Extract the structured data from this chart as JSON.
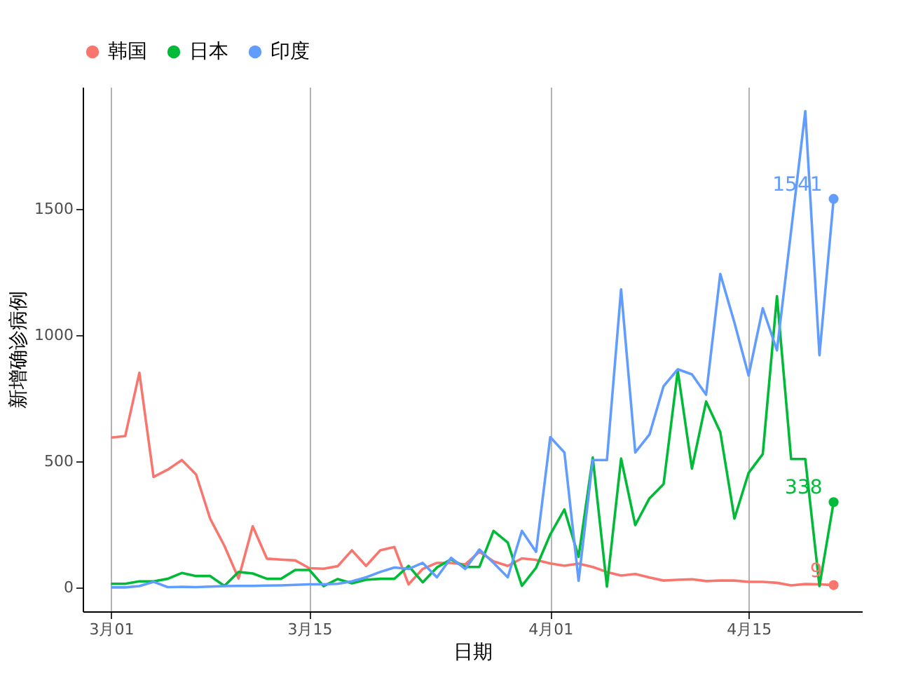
{
  "chart_data": {
    "type": "line",
    "xlabel": "日期",
    "ylabel": "新增确诊病例",
    "x": [
      "--03-01",
      "--03-02",
      "--03-03",
      "--03-04",
      "--03-05",
      "--03-06",
      "--03-07",
      "--03-08",
      "--03-09",
      "--03-10",
      "--03-11",
      "--03-12",
      "--03-13",
      "--03-14",
      "--03-15",
      "--03-16",
      "--03-17",
      "--03-18",
      "--03-19",
      "--03-20",
      "--03-21",
      "--03-22",
      "--03-23",
      "--03-24",
      "--03-25",
      "--03-26",
      "--03-27",
      "--03-28",
      "--03-29",
      "--03-30",
      "--03-31",
      "--04-01",
      "--04-02",
      "--04-03",
      "--04-04",
      "--04-05",
      "--04-06",
      "--04-07",
      "--04-08",
      "--04-09",
      "--04-10",
      "--04-11",
      "--04-12",
      "--04-13",
      "--04-14",
      "--04-15",
      "--04-16",
      "--04-17",
      "--04-18",
      "--04-19",
      "--04-20",
      "--04-21"
    ],
    "series": [
      {
        "name": "韩国",
        "color": "#f8766d",
        "values": [
          594,
          600,
          851,
          438,
          467,
          505,
          448,
          272,
          165,
          35,
          242,
          114,
          110,
          107,
          76,
          74,
          84,
          147,
          85,
          147,
          160,
          12,
          73,
          97,
          97,
          91,
          141,
          103,
          85,
          115,
          109,
          95,
          86,
          94,
          81,
          61,
          47,
          53,
          39,
          27,
          30,
          32,
          25,
          27,
          27,
          22,
          22,
          18,
          8,
          13,
          12,
          9
        ],
        "value_labels": [
          null,
          null,
          null,
          null,
          null,
          null,
          null,
          null,
          null,
          null,
          null,
          null,
          null,
          null,
          null,
          null,
          null,
          null,
          null,
          null,
          null,
          null,
          null,
          null,
          null,
          null,
          null,
          null,
          null,
          null,
          null,
          null,
          null,
          null,
          null,
          null,
          null,
          null,
          null,
          null,
          null,
          null,
          null,
          null,
          null,
          null,
          null,
          null,
          null,
          null,
          null,
          "9"
        ]
      },
      {
        "name": "日本",
        "color": "#00ba38",
        "values": [
          14,
          14,
          24,
          24,
          34,
          57,
          45,
          45,
          6,
          61,
          55,
          34,
          34,
          69,
          69,
          5,
          33,
          16,
          30,
          34,
          34,
          85,
          20,
          79,
          111,
          81,
          81,
          224,
          178,
          6,
          78,
          210,
          309,
          121,
          515,
          3,
          511,
          247,
          353,
          410,
          859,
          471,
          737,
          616,
          273,
          454,
          529,
          1155,
          509,
          509,
          5,
          338
        ],
        "value_labels": [
          null,
          null,
          null,
          null,
          null,
          null,
          null,
          null,
          null,
          null,
          null,
          null,
          null,
          null,
          null,
          null,
          null,
          null,
          null,
          null,
          null,
          null,
          null,
          null,
          null,
          null,
          null,
          null,
          null,
          null,
          null,
          null,
          null,
          null,
          null,
          null,
          null,
          null,
          null,
          null,
          null,
          null,
          null,
          null,
          null,
          null,
          null,
          null,
          null,
          null,
          null,
          "338"
        ]
      },
      {
        "name": "印度",
        "color": "#619cff",
        "values": [
          0,
          0,
          5,
          22,
          1,
          2,
          1,
          3,
          5,
          6,
          6,
          7,
          8,
          10,
          12,
          12,
          14,
          24,
          40,
          61,
          79,
          73,
          97,
          40,
          117,
          73,
          150,
          97,
          40,
          224,
          141,
          596,
          535,
          26,
          505,
          505,
          1182,
          535,
          606,
          798,
          865,
          845,
          764,
          1243,
          1050,
          840,
          1107,
          940,
          1414,
          1889,
          921,
          1541
        ],
        "value_labels": [
          null,
          null,
          null,
          null,
          null,
          null,
          null,
          null,
          null,
          null,
          null,
          null,
          null,
          null,
          null,
          null,
          null,
          null,
          null,
          null,
          null,
          null,
          null,
          null,
          null,
          null,
          null,
          null,
          null,
          null,
          null,
          null,
          null,
          null,
          null,
          null,
          null,
          null,
          null,
          null,
          null,
          null,
          null,
          null,
          null,
          null,
          null,
          null,
          null,
          null,
          null,
          "1541"
        ]
      }
    ],
    "xlim": [
      "--02-27",
      "--04-23"
    ],
    "xticks": [
      {
        "value": "--03-01",
        "label": "3月01"
      },
      {
        "value": "--03-15",
        "label": "3月15"
      },
      {
        "value": "--04-01",
        "label": "4月01"
      },
      {
        "value": "--04-15",
        "label": "4月15"
      }
    ],
    "ylim": [
      -95,
      1985
    ],
    "yticks": [
      0,
      500,
      1000,
      1500
    ],
    "grid": "x",
    "legend": "top"
  }
}
